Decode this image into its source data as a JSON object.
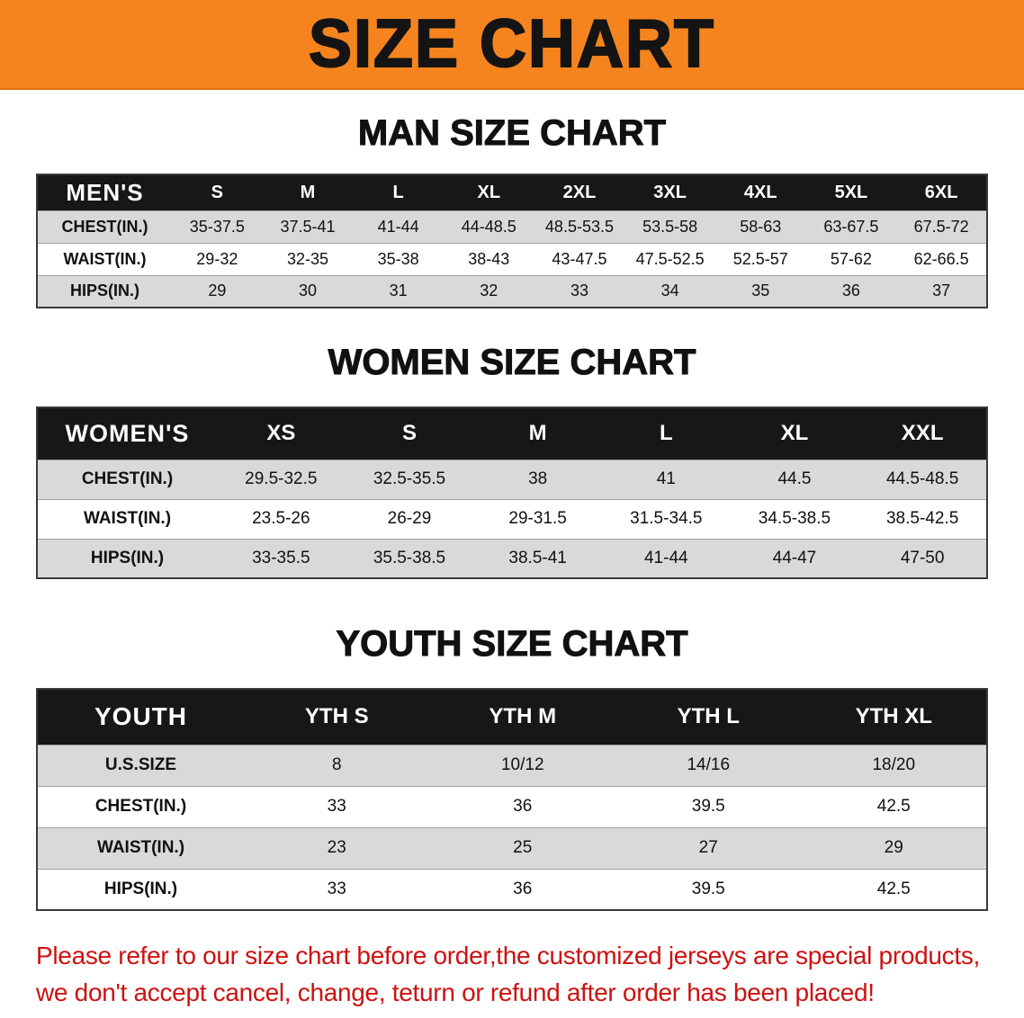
{
  "banner": {
    "title": "SIZE CHART",
    "bg_color": "#f5841f"
  },
  "colors": {
    "table_header_bg": "#171717",
    "table_stripe": "#d9d9d9",
    "disclaimer_text": "#cc1111"
  },
  "sections": [
    {
      "heading": "MAN SIZE CHART",
      "table": {
        "header": [
          "MEN'S",
          "S",
          "M",
          "L",
          "XL",
          "2XL",
          "3XL",
          "4XL",
          "5XL",
          "6XL"
        ],
        "rows": [
          [
            "CHEST(IN.)",
            "35-37.5",
            "37.5-41",
            "41-44",
            "44-48.5",
            "48.5-53.5",
            "53.5-58",
            "58-63",
            "63-67.5",
            "67.5-72"
          ],
          [
            "WAIST(IN.)",
            "29-32",
            "32-35",
            "35-38",
            "38-43",
            "43-47.5",
            "47.5-52.5",
            "52.5-57",
            "57-62",
            "62-66.5"
          ],
          [
            "HIPS(IN.)",
            "29",
            "30",
            "31",
            "32",
            "33",
            "34",
            "35",
            "36",
            "37"
          ]
        ]
      }
    },
    {
      "heading": "WOMEN SIZE CHART",
      "table": {
        "header": [
          "WOMEN'S",
          "XS",
          "S",
          "M",
          "L",
          "XL",
          "XXL"
        ],
        "rows": [
          [
            "CHEST(IN.)",
            "29.5-32.5",
            "32.5-35.5",
            "38",
            "41",
            "44.5",
            "44.5-48.5"
          ],
          [
            "WAIST(IN.)",
            "23.5-26",
            "26-29",
            "29-31.5",
            "31.5-34.5",
            "34.5-38.5",
            "38.5-42.5"
          ],
          [
            "HIPS(IN.)",
            "33-35.5",
            "35.5-38.5",
            "38.5-41",
            "41-44",
            "44-47",
            "47-50"
          ]
        ]
      }
    },
    {
      "heading": "YOUTH SIZE CHART",
      "table": {
        "header": [
          "YOUTH",
          "YTH S",
          "YTH M",
          "YTH L",
          "YTH XL"
        ],
        "rows": [
          [
            "U.S.SIZE",
            "8",
            "10/12",
            "14/16",
            "18/20"
          ],
          [
            "CHEST(IN.)",
            "33",
            "36",
            "39.5",
            "42.5"
          ],
          [
            "WAIST(IN.)",
            "23",
            "25",
            "27",
            "29"
          ],
          [
            "HIPS(IN.)",
            "33",
            "36",
            "39.5",
            "42.5"
          ]
        ]
      }
    }
  ],
  "disclaimer": {
    "line1": "Please refer to our size chart before order,the customized jerseys are special products,",
    "line2": "we don't accept cancel, change, teturn or refund after order has been placed!"
  }
}
